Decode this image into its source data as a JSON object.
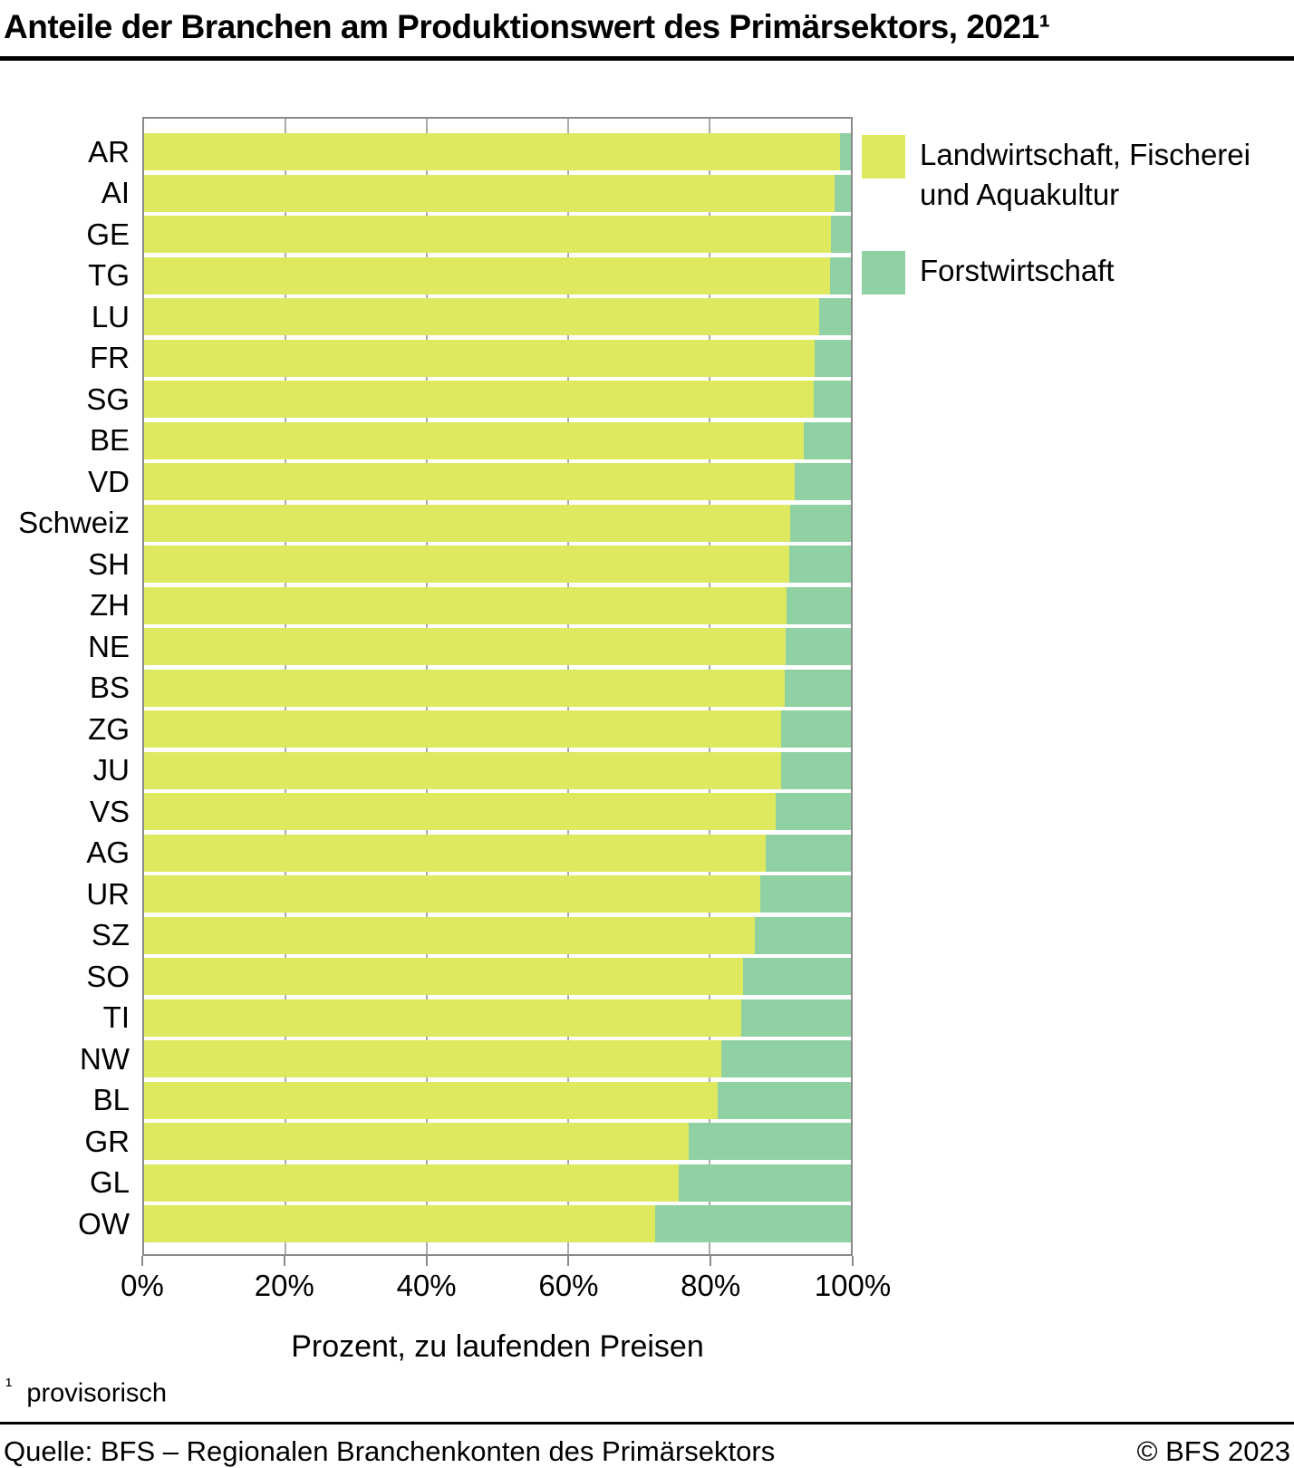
{
  "title": "Anteile der Branchen am Produktionswert des Primärsektors, 2021¹",
  "chart_data": {
    "type": "bar",
    "orientation": "horizontal",
    "stacked": true,
    "unit": "percent",
    "xlim": [
      0,
      100
    ],
    "x_ticks": [
      "0%",
      "20%",
      "40%",
      "60%",
      "80%",
      "100%"
    ],
    "x_tick_values": [
      0,
      20,
      40,
      60,
      80,
      100
    ],
    "gridlines_at": [
      20,
      40,
      60,
      80
    ],
    "xlabel": "Prozent, zu laufenden Preisen",
    "legend_position": "right",
    "categories": [
      "AR",
      "AI",
      "GE",
      "TG",
      "LU",
      "FR",
      "SG",
      "BE",
      "VD",
      "Schweiz",
      "SH",
      "ZH",
      "NE",
      "BS",
      "ZG",
      "JU",
      "VS",
      "AG",
      "UR",
      "SZ",
      "SO",
      "TI",
      "NW",
      "BL",
      "GR",
      "GL",
      "OW"
    ],
    "series": [
      {
        "name": "Landwirtschaft, Fischerei und Aquakultur",
        "color": "#dee95f",
        "values": [
          98.4,
          97.7,
          97.2,
          97.0,
          95.5,
          94.9,
          94.8,
          93.3,
          92.0,
          91.4,
          91.3,
          90.9,
          90.8,
          90.6,
          90.1,
          90.1,
          89.4,
          87.9,
          87.2,
          86.4,
          84.7,
          84.5,
          81.7,
          81.1,
          77.0,
          75.7,
          72.3
        ]
      },
      {
        "name": "Forstwirtschaft",
        "color": "#8fd1a2",
        "values": [
          1.6,
          2.3,
          2.8,
          3.0,
          4.5,
          5.1,
          5.2,
          6.7,
          8.0,
          8.6,
          8.7,
          9.1,
          9.2,
          9.4,
          9.9,
          9.9,
          10.6,
          12.1,
          12.8,
          13.6,
          15.3,
          15.5,
          18.3,
          18.9,
          23.0,
          24.3,
          27.7
        ]
      }
    ]
  },
  "legend": {
    "items": [
      {
        "label": "Landwirtschaft, Fischerei und Aquakultur",
        "color": "#dee95f"
      },
      {
        "label": "Forstwirtschaft",
        "color": "#8fd1a2"
      }
    ]
  },
  "xaxis_title": "Prozent, zu laufenden Preisen",
  "footnote": {
    "marker": "¹",
    "text": "provisorisch"
  },
  "footer": {
    "source": "Quelle: BFS – Regionalen Branchenkonten des Primärsektors",
    "copyright": "© BFS 2023"
  }
}
